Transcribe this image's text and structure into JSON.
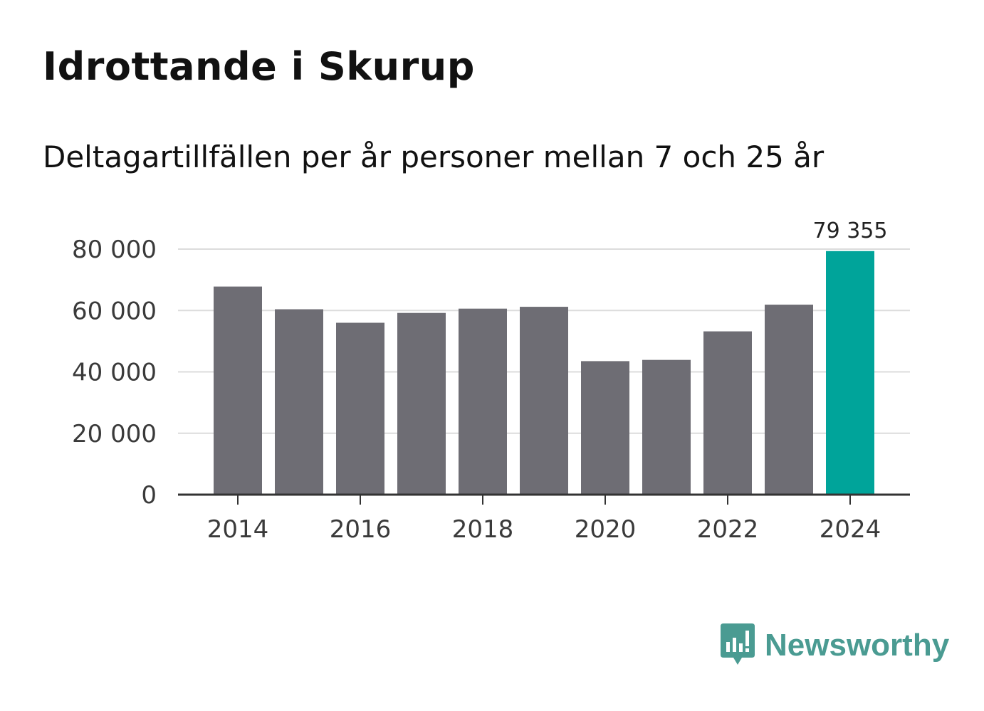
{
  "title": "Idrottande i Skurup",
  "subtitle": "Deltagartillfällen per år personer mellan 7 och 25 år",
  "brand": {
    "name": "Newsworthy",
    "color": "#4a9b92",
    "icon": "bar-chart-speech-bubble-icon"
  },
  "colors": {
    "bar": "#6e6d74",
    "highlight": "#00a49a",
    "grid": "#dcdcdc",
    "axis": "#333333"
  },
  "chart_data": {
    "type": "bar",
    "categories": [
      "2014",
      "2015",
      "2016",
      "2017",
      "2018",
      "2019",
      "2020",
      "2021",
      "2022",
      "2023",
      "2024"
    ],
    "values": [
      67800,
      60400,
      56000,
      59200,
      60600,
      61200,
      43500,
      43900,
      53200,
      61900,
      79355
    ],
    "highlight_index": 10,
    "data_labels": [
      {
        "index": 10,
        "text": "79 355"
      }
    ],
    "x_tick_labels": [
      "2014",
      "2016",
      "2018",
      "2020",
      "2022",
      "2024"
    ],
    "y_ticks": [
      0,
      20000,
      40000,
      60000,
      80000
    ],
    "y_tick_labels": [
      "0",
      "20 000",
      "40 000",
      "60 000",
      "80 000"
    ],
    "ylim": [
      0,
      80000
    ],
    "title": "Idrottande i Skurup",
    "xlabel": "",
    "ylabel": "",
    "grid": true
  }
}
